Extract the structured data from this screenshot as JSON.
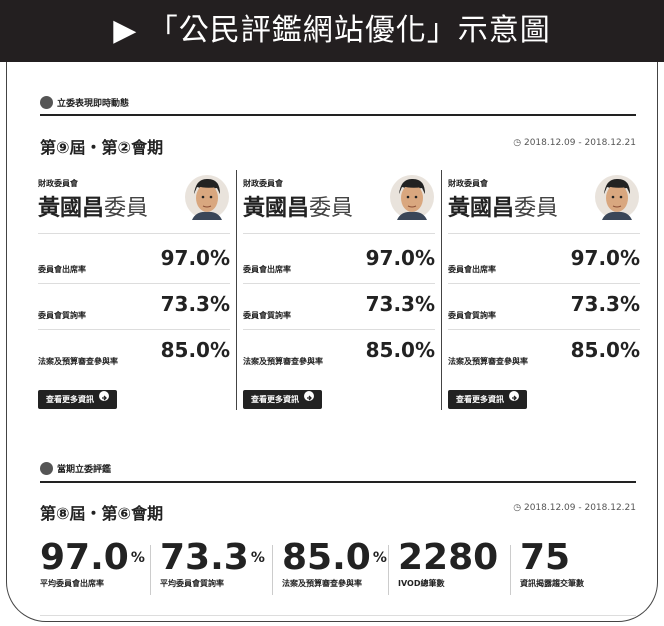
{
  "header": {
    "title": "▶ 「公民評鑑網站優化」示意圖"
  },
  "realtime": {
    "title": "立委表現即時動態",
    "session": "第⑨屆・第②會期",
    "date": "2018.12.09 - 2018.12.21",
    "cards": [
      {
        "committee": "財政委員會",
        "name": "黃國昌",
        "suffix": "委員",
        "button": "查看更多資訊",
        "rows": [
          {
            "label": "委員會出席率",
            "value": "97.0%"
          },
          {
            "label": "委員會質詢率",
            "value": "73.3%"
          },
          {
            "label": "法案及預算審查參與率",
            "value": "85.0%"
          }
        ]
      },
      {
        "committee": "財政委員會",
        "name": "黃國昌",
        "suffix": "委員",
        "button": "查看更多資訊",
        "rows": [
          {
            "label": "委員會出席率",
            "value": "97.0%"
          },
          {
            "label": "委員會質詢率",
            "value": "73.3%"
          },
          {
            "label": "法案及預算審查參與率",
            "value": "85.0%"
          }
        ]
      },
      {
        "committee": "財政委員會",
        "name": "黃國昌",
        "suffix": "委員",
        "button": "查看更多資訊",
        "rows": [
          {
            "label": "委員會出席率",
            "value": "97.0%"
          },
          {
            "label": "委員會質詢率",
            "value": "73.3%"
          },
          {
            "label": "法案及預算審查參與率",
            "value": "85.0%"
          }
        ]
      }
    ]
  },
  "evaluation": {
    "title": "當期立委評鑑",
    "session": "第⑧屆・第⑥會期",
    "date": "2018.12.09 - 2018.12.21",
    "stats": [
      {
        "value": "97.0",
        "unit": "%",
        "label": "平均委員會出席率"
      },
      {
        "value": "73.3",
        "unit": "%",
        "label": "平均委員會質詢率"
      },
      {
        "value": "85.0",
        "unit": "%",
        "label": "法案及預算審查參與率"
      },
      {
        "value": "2280",
        "label": "IVOD總筆數"
      },
      {
        "value": "75",
        "label": "資訊揭露趨交筆數"
      }
    ]
  }
}
